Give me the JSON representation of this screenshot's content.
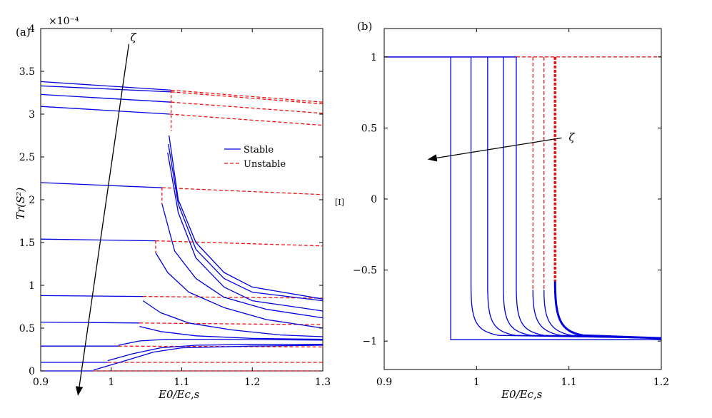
{
  "figure": {
    "panels": [
      "(a)",
      "(b)"
    ]
  },
  "chart_data": [
    {
      "type": "line",
      "panel_label": "(a)",
      "xlabel": "E0/Ec,s",
      "ylabel": "Tr(S²)",
      "y_exponent": "×10⁻⁴",
      "xlim": [
        0.9,
        1.3
      ],
      "ylim": [
        0,
        4
      ],
      "xticks": [
        "0.9",
        "1",
        "1.1",
        "1.2",
        "1.3"
      ],
      "yticks": [
        "0",
        "0.5",
        "1",
        "1.5",
        "2",
        "2.5",
        "3",
        "3.5",
        "4"
      ],
      "legend": {
        "position": "center-right",
        "entries": [
          {
            "label": "Stable",
            "style": "solid",
            "color": "#0000dd"
          },
          {
            "label": "Unstable",
            "style": "dashed",
            "color": "#ee1111"
          }
        ]
      },
      "annotation": {
        "text": "ζ",
        "from": [
          1.025,
          3.82
        ],
        "to": [
          0.953,
          -0.28
        ]
      },
      "series": [
        {
          "name": "s1",
          "stable": [
            [
              0.9,
              3.38
            ],
            [
              1.085,
              3.28
            ]
          ],
          "unstable": [
            [
              1.085,
              3.28
            ],
            [
              1.3,
              3.14
            ]
          ]
        },
        {
          "name": "s2",
          "stable": [
            [
              0.9,
              3.33
            ],
            [
              1.085,
              3.26
            ]
          ],
          "unstable": [
            [
              1.085,
              3.26
            ],
            [
              1.3,
              3.12
            ]
          ]
        },
        {
          "name": "s3",
          "stable": [
            [
              0.9,
              3.23
            ],
            [
              1.085,
              3.14
            ]
          ],
          "unstable": [
            [
              1.085,
              3.14
            ],
            [
              1.3,
              3.01
            ]
          ]
        },
        {
          "name": "s4",
          "stable": [
            [
              0.9,
              3.09
            ],
            [
              1.083,
              3.0
            ]
          ],
          "unstable": [
            [
              1.083,
              3.0
            ],
            [
              1.3,
              2.87
            ]
          ]
        },
        {
          "name": "s5",
          "stable": [
            [
              0.9,
              2.2
            ],
            [
              1.072,
              2.14
            ]
          ],
          "unstable": [
            [
              1.072,
              2.14
            ],
            [
              1.3,
              2.06
            ]
          ]
        },
        {
          "name": "s6",
          "stable": [
            [
              0.9,
              1.54
            ],
            [
              1.063,
              1.52
            ]
          ],
          "unstable": [
            [
              1.063,
              1.52
            ],
            [
              1.3,
              1.46
            ]
          ]
        },
        {
          "name": "s7",
          "stable": [
            [
              0.9,
              0.88
            ],
            [
              1.045,
              0.87
            ]
          ],
          "unstable": [
            [
              1.045,
              0.87
            ],
            [
              1.3,
              0.85
            ]
          ]
        },
        {
          "name": "s8",
          "stable": [
            [
              0.9,
              0.57
            ],
            [
              1.04,
              0.56
            ]
          ],
          "unstable": [
            [
              1.04,
              0.56
            ],
            [
              1.3,
              0.54
            ]
          ]
        },
        {
          "name": "s9",
          "stable": [
            [
              0.9,
              0.29
            ],
            [
              1.01,
              0.29
            ]
          ],
          "unstable": [
            [
              1.01,
              0.29
            ],
            [
              1.3,
              0.28
            ]
          ]
        },
        {
          "name": "s10",
          "stable": [
            [
              0.9,
              0.1
            ],
            [
              0.995,
              0.1
            ]
          ],
          "unstable": [
            [
              0.995,
              0.1
            ],
            [
              1.3,
              0.1
            ]
          ]
        },
        {
          "name": "s11",
          "stable": [
            [
              0.9,
              0.0
            ],
            [
              0.975,
              0.0
            ]
          ],
          "unstable": [
            [
              0.975,
              0.0
            ],
            [
              1.3,
              0.0
            ]
          ]
        }
      ],
      "decay_branches": [
        [
          [
            1.082,
            2.75
          ],
          [
            1.095,
            2.0
          ],
          [
            1.12,
            1.5
          ],
          [
            1.16,
            1.15
          ],
          [
            1.2,
            0.98
          ],
          [
            1.3,
            0.84
          ]
        ],
        [
          [
            1.081,
            2.65
          ],
          [
            1.095,
            1.95
          ],
          [
            1.12,
            1.42
          ],
          [
            1.16,
            1.08
          ],
          [
            1.2,
            0.92
          ],
          [
            1.3,
            0.82
          ]
        ],
        [
          [
            1.08,
            2.55
          ],
          [
            1.095,
            1.85
          ],
          [
            1.12,
            1.32
          ],
          [
            1.16,
            0.98
          ],
          [
            1.2,
            0.82
          ],
          [
            1.3,
            0.7
          ]
        ],
        [
          [
            1.072,
            1.95
          ],
          [
            1.09,
            1.4
          ],
          [
            1.12,
            1.08
          ],
          [
            1.16,
            0.86
          ],
          [
            1.22,
            0.72
          ],
          [
            1.3,
            0.62
          ]
        ],
        [
          [
            1.063,
            1.38
          ],
          [
            1.08,
            1.15
          ],
          [
            1.11,
            0.92
          ],
          [
            1.16,
            0.74
          ],
          [
            1.22,
            0.6
          ],
          [
            1.3,
            0.5
          ]
        ],
        [
          [
            1.045,
            0.82
          ],
          [
            1.07,
            0.68
          ],
          [
            1.11,
            0.56
          ],
          [
            1.17,
            0.48
          ],
          [
            1.24,
            0.42
          ],
          [
            1.3,
            0.4
          ]
        ],
        [
          [
            1.04,
            0.52
          ],
          [
            1.07,
            0.46
          ],
          [
            1.12,
            0.41
          ],
          [
            1.2,
            0.38
          ],
          [
            1.3,
            0.37
          ]
        ],
        [
          [
            1.01,
            0.3
          ],
          [
            1.04,
            0.35
          ],
          [
            1.08,
            0.37
          ],
          [
            1.15,
            0.37
          ],
          [
            1.3,
            0.36
          ]
        ],
        [
          [
            0.995,
            0.12
          ],
          [
            1.03,
            0.2
          ],
          [
            1.07,
            0.27
          ],
          [
            1.12,
            0.3
          ],
          [
            1.2,
            0.31
          ],
          [
            1.3,
            0.31
          ]
        ],
        [
          [
            0.975,
            0.01
          ],
          [
            1.02,
            0.12
          ],
          [
            1.06,
            0.22
          ],
          [
            1.1,
            0.27
          ],
          [
            1.2,
            0.29
          ],
          [
            1.3,
            0.3
          ]
        ]
      ]
    },
    {
      "type": "line",
      "panel_label": "(b)",
      "xlabel": "E0/Ec,s",
      "ylabel": "[I]",
      "xlim": [
        0.9,
        1.2
      ],
      "ylim": [
        -1.2,
        1.2
      ],
      "xticks": [
        "0.9",
        "1",
        "1.1",
        "1.2"
      ],
      "yticks": [
        "−1",
        "−0.5",
        "0",
        "0.5",
        "1"
      ],
      "annotation": {
        "text": "ζ",
        "from": [
          1.092,
          0.43
        ],
        "to": [
          0.948,
          0.28
        ]
      },
      "top_level": 1,
      "bottom_level": -0.98,
      "stable_drop_x": [
        0.972,
        0.994,
        1.012,
        1.029,
        1.043
      ],
      "unstable_drop": [
        {
          "x": 1.061,
          "bottom": -0.64
        },
        {
          "x": 1.073,
          "bottom": -0.64
        },
        {
          "x": 1.085,
          "bottom": -0.58
        }
      ]
    }
  ]
}
